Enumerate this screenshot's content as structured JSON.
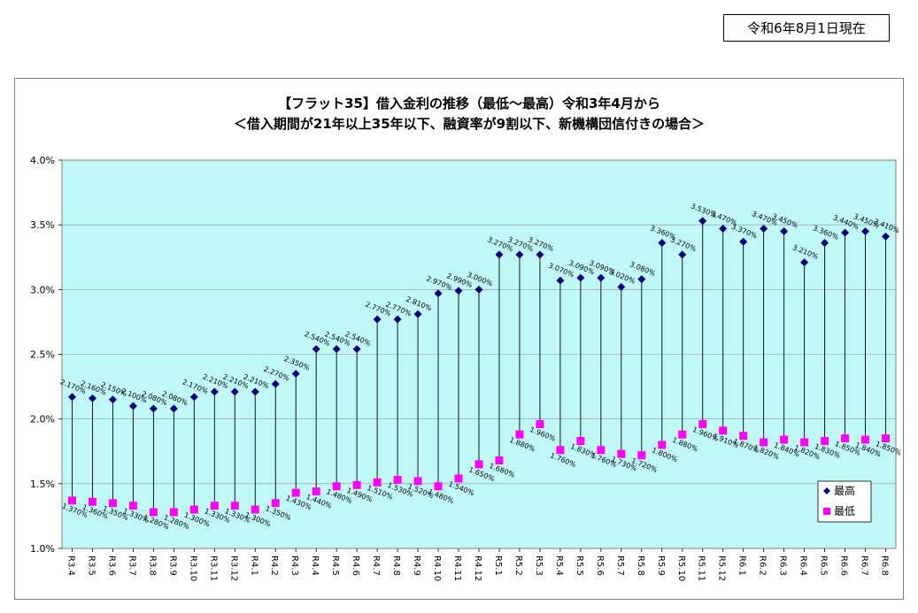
{
  "header": {
    "as_of_date": "令和6年8月1日現在"
  },
  "chart_data": {
    "type": "line",
    "title": "【フラット35】借入金利の推移（最低～最高）令和3年4月から",
    "subtitle": "＜借入期間が21年以上35年以下、融資率が9割以下、新機構団信付きの場合＞",
    "xlabel": "",
    "ylabel": "",
    "ylim": [
      1.0,
      4.0
    ],
    "yticks": [
      "1.0%",
      "1.5%",
      "2.0%",
      "2.5%",
      "3.0%",
      "3.5%",
      "4.0%"
    ],
    "grid": true,
    "legend_position": "bottom-right",
    "categories": [
      "R3.4",
      "R3.5",
      "R3.6",
      "R3.7",
      "R3.8",
      "R3.9",
      "R3.10",
      "R3.11",
      "R3.12",
      "R4.1",
      "R4.2",
      "R4.3",
      "R4.4",
      "R4.5",
      "R4.6",
      "R4.7",
      "R4.8",
      "R4.9",
      "R4.10",
      "R4.11",
      "R4.12",
      "R5.1",
      "R5.2",
      "R5.3",
      "R5.4",
      "R5.5",
      "R5.6",
      "R5.7",
      "R5.8",
      "R5.9",
      "R5.10",
      "R5.11",
      "R5.12",
      "R6.1",
      "R6.2",
      "R6.3",
      "R6.4",
      "R6.5",
      "R6.6",
      "R6.7",
      "R6.8"
    ],
    "series": [
      {
        "name": "最高",
        "color": "#000080",
        "marker": "diamond",
        "values": [
          2.17,
          2.16,
          2.15,
          2.1,
          2.08,
          2.08,
          2.17,
          2.21,
          2.21,
          2.21,
          2.27,
          2.35,
          2.54,
          2.54,
          2.54,
          2.77,
          2.77,
          2.81,
          2.97,
          2.99,
          3.0,
          3.27,
          3.27,
          3.27,
          3.07,
          3.09,
          3.09,
          3.02,
          3.08,
          3.36,
          3.27,
          3.53,
          3.47,
          3.37,
          3.47,
          3.45,
          3.21,
          3.36,
          3.44,
          3.45,
          3.41
        ],
        "labels": [
          "2.170%",
          "2.160%",
          "2.150%",
          "2.100%",
          "2.080%",
          "2.080%",
          "2.170%",
          "2.210%",
          "2.210%",
          "2.210%",
          "2.270%",
          "2.350%",
          "2.540%",
          "2.540%",
          "2.540%",
          "2.770%",
          "2.770%",
          "2.810%",
          "2.970%",
          "2.990%",
          "3.000%",
          "3.270%",
          "3.270%",
          "3.270%",
          "3.070%",
          "3.090%",
          "3.090%",
          "3.020%",
          "3.080%",
          "3.360%",
          "3.270%",
          "3.530%",
          "3.470%",
          "3.370%",
          "3.470%",
          "3.450%",
          "3.210%",
          "3.360%",
          "3.440%",
          "3.450%",
          "3.410%"
        ]
      },
      {
        "name": "最低",
        "color": "#ff00ff",
        "marker": "square",
        "values": [
          1.37,
          1.36,
          1.35,
          1.33,
          1.28,
          1.28,
          1.3,
          1.33,
          1.33,
          1.3,
          1.35,
          1.43,
          1.44,
          1.48,
          1.49,
          1.51,
          1.53,
          1.52,
          1.48,
          1.54,
          1.65,
          1.68,
          1.88,
          1.96,
          1.76,
          1.83,
          1.76,
          1.73,
          1.72,
          1.8,
          1.88,
          1.96,
          1.91,
          1.87,
          1.82,
          1.84,
          1.82,
          1.83,
          1.85,
          1.84,
          1.85
        ],
        "labels": [
          "1.370%",
          "1.360%",
          "1.350%",
          "1.330%",
          "1.280%",
          "1.280%",
          "1.300%",
          "1.330%",
          "1.330%",
          "1.300%",
          "1.350%",
          "1.430%",
          "1.440%",
          "1.480%",
          "1.490%",
          "1.510%",
          "1.530%",
          "1.520%",
          "1.480%",
          "1.540%",
          "1.650%",
          "1.680%",
          "1.880%",
          "1.960%",
          "1.760%",
          "1.830%",
          "1.760%",
          "1.730%",
          "1.720%",
          "1.800%",
          "1.880%",
          "1.960%",
          "1.910%",
          "1.870%",
          "1.820%",
          "1.840%",
          "1.820%",
          "1.830%",
          "1.850%",
          "1.840%",
          "1.850%"
        ]
      }
    ]
  }
}
